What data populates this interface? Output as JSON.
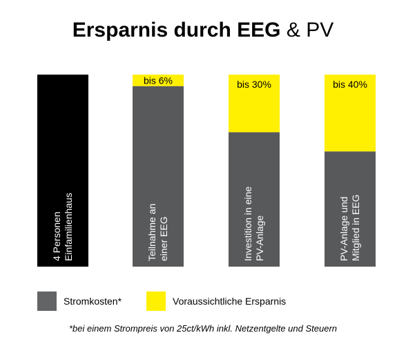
{
  "title": {
    "bold": "Ersparnis durch EEG",
    "rest": "& PV"
  },
  "chart_data": {
    "type": "bar",
    "stacked": true,
    "normalized": true,
    "categories": [
      [
        "4 Personen",
        "Einfamilienhaus"
      ],
      [
        "Teilnahme an",
        "einer EEG"
      ],
      [
        "Investition in eine",
        "PV-Anlage"
      ],
      [
        "PV-Anlage und",
        "Mitglied in EEG"
      ]
    ],
    "series": [
      {
        "name": "Stromkosten*",
        "color": "#58595b",
        "values": [
          100,
          94,
          70,
          60
        ]
      },
      {
        "name": "Voraussichtliche Ersparnis",
        "color": "#ffef00",
        "values": [
          0,
          6,
          30,
          40
        ]
      }
    ],
    "bar_labels": [
      "",
      "bis 6%",
      "bis 30%",
      "bis 40%"
    ],
    "first_bar_color": "#000000",
    "ylim": [
      0,
      100
    ],
    "grid": false,
    "legend_position": "bottom-left"
  },
  "legend": [
    {
      "label": "Stromkosten*",
      "color": "#636466"
    },
    {
      "label": "Voraussichtliche Ersparnis",
      "color": "#ffef00"
    }
  ],
  "footnote": "*bei einem Strompreis von 25ct/kWh inkl. Netzentgelte und Steuern"
}
